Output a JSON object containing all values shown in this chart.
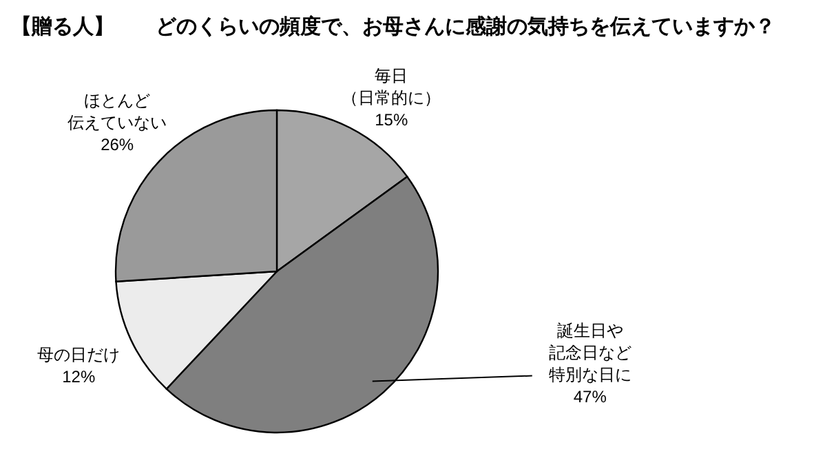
{
  "chart_data": {
    "type": "pie",
    "title": "【贈る人】　　どのくらいの頻度で、お母さんに感謝の気持ちを伝えていますか？",
    "categories": [
      "毎日（日常的に）",
      "誕生日や記念日など特別な日に",
      "母の日だけ",
      "ほとんど伝えていない"
    ],
    "values": [
      15,
      47,
      12,
      26
    ],
    "value_labels": [
      "15%",
      "47%",
      "12%",
      "26%"
    ],
    "colors": [
      "#a6a6a6",
      "#7f7f7f",
      "#ececec",
      "#9a9a9a"
    ]
  }
}
